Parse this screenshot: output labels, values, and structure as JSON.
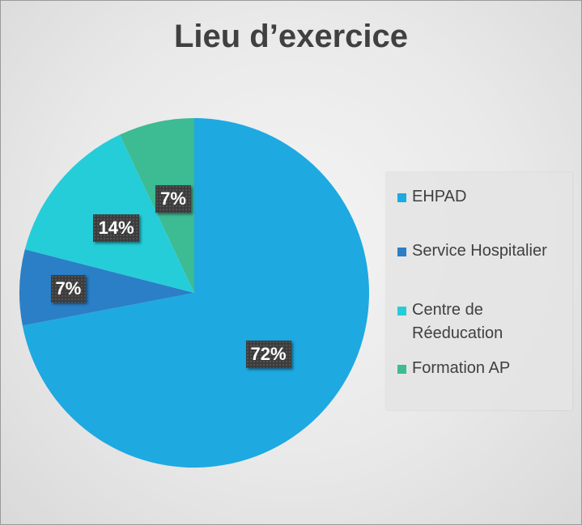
{
  "chart_data": {
    "type": "pie",
    "title": "Lieu d’exercice",
    "start_angle_deg": 0,
    "direction": "clockwise",
    "slices": [
      {
        "label": "EHPAD",
        "value": 72,
        "display": "72%",
        "color": "#1ea9e1"
      },
      {
        "label": "Service Hospitalier",
        "value": 7,
        "display": "7%",
        "color": "#2b7fc6"
      },
      {
        "label": "Centre de Réeducation",
        "value": 14,
        "display": "14%",
        "color": "#25cdd9"
      },
      {
        "label": "Formation AP",
        "value": 7,
        "display": "7%",
        "color": "#3dbb92"
      }
    ],
    "legend": {
      "position": "right",
      "items": [
        {
          "label": "EHPAD",
          "color": "#1ea9e1"
        },
        {
          "label": "Service Hospitalier",
          "color": "#2b7fc6"
        },
        {
          "label": "Centre de Réeducation",
          "color": "#25cdd9"
        },
        {
          "label": "Formation AP",
          "color": "#3dbb92"
        }
      ]
    }
  }
}
